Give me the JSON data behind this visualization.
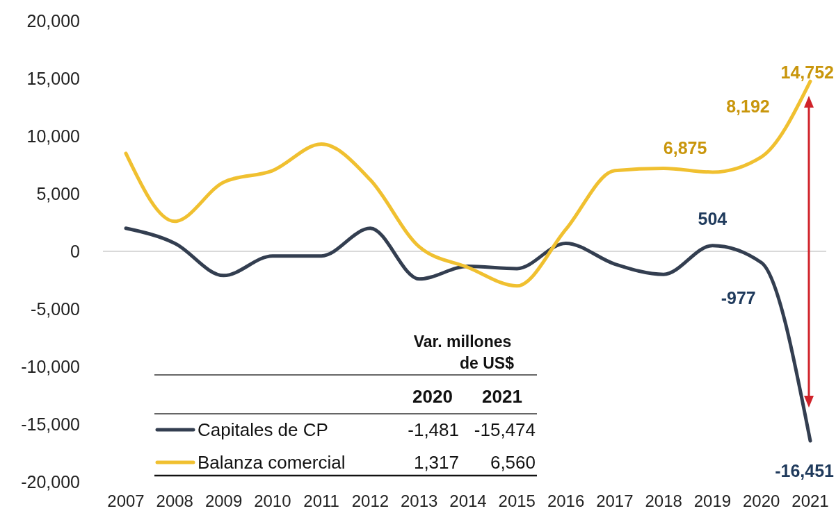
{
  "chart_data": {
    "type": "line",
    "categories": [
      "2007",
      "2008",
      "2009",
      "2010",
      "2011",
      "2012",
      "2013",
      "2014",
      "2015",
      "2016",
      "2017",
      "2018",
      "2019",
      "2020",
      "2021"
    ],
    "series": [
      {
        "name": "Capitales de CP",
        "color": "#333e50",
        "values": [
          2000,
          700,
          -2100,
          -400,
          -400,
          2000,
          -2400,
          -1300,
          -1500,
          700,
          -1100,
          -2000,
          504,
          -977,
          -16451
        ],
        "value_labels": [
          null,
          null,
          null,
          null,
          null,
          null,
          null,
          null,
          null,
          null,
          null,
          null,
          "504",
          "-977",
          "-16,451"
        ]
      },
      {
        "name": "Balanza comercial",
        "color": "#f0c030",
        "values": [
          8500,
          2600,
          6000,
          7000,
          9300,
          6200,
          400,
          -1400,
          -3000,
          1900,
          7000,
          7200,
          6875,
          8192,
          14752
        ],
        "value_labels": [
          null,
          null,
          null,
          null,
          null,
          null,
          null,
          null,
          null,
          null,
          null,
          null,
          "6,875",
          "8,192",
          "14,752"
        ]
      }
    ],
    "ylim": [
      -20000,
      20000
    ],
    "yticks": [
      {
        "value": -20000,
        "label": "-20,000"
      },
      {
        "value": -15000,
        "label": "-15,000"
      },
      {
        "value": -10000,
        "label": "-10,000"
      },
      {
        "value": -5000,
        "label": "-5,000"
      },
      0,
      {
        "value": 5000,
        "label": "5,000"
      },
      {
        "value": 10000,
        "label": "10,000"
      },
      {
        "value": 15000,
        "label": "15,000"
      },
      {
        "value": 20000,
        "label": "20,000"
      }
    ],
    "ref_lines": [
      {
        "axis": "y",
        "value": 0,
        "color": "#d9d9d9"
      }
    ],
    "legend": "bottom left",
    "legend_title": "Var. millones de US$",
    "annotations": [
      "2020",
      "2021",
      "-1,481",
      "-15,474",
      "1,317",
      "6,560"
    ],
    "marker": "none",
    "line_style": "solid"
  }
}
